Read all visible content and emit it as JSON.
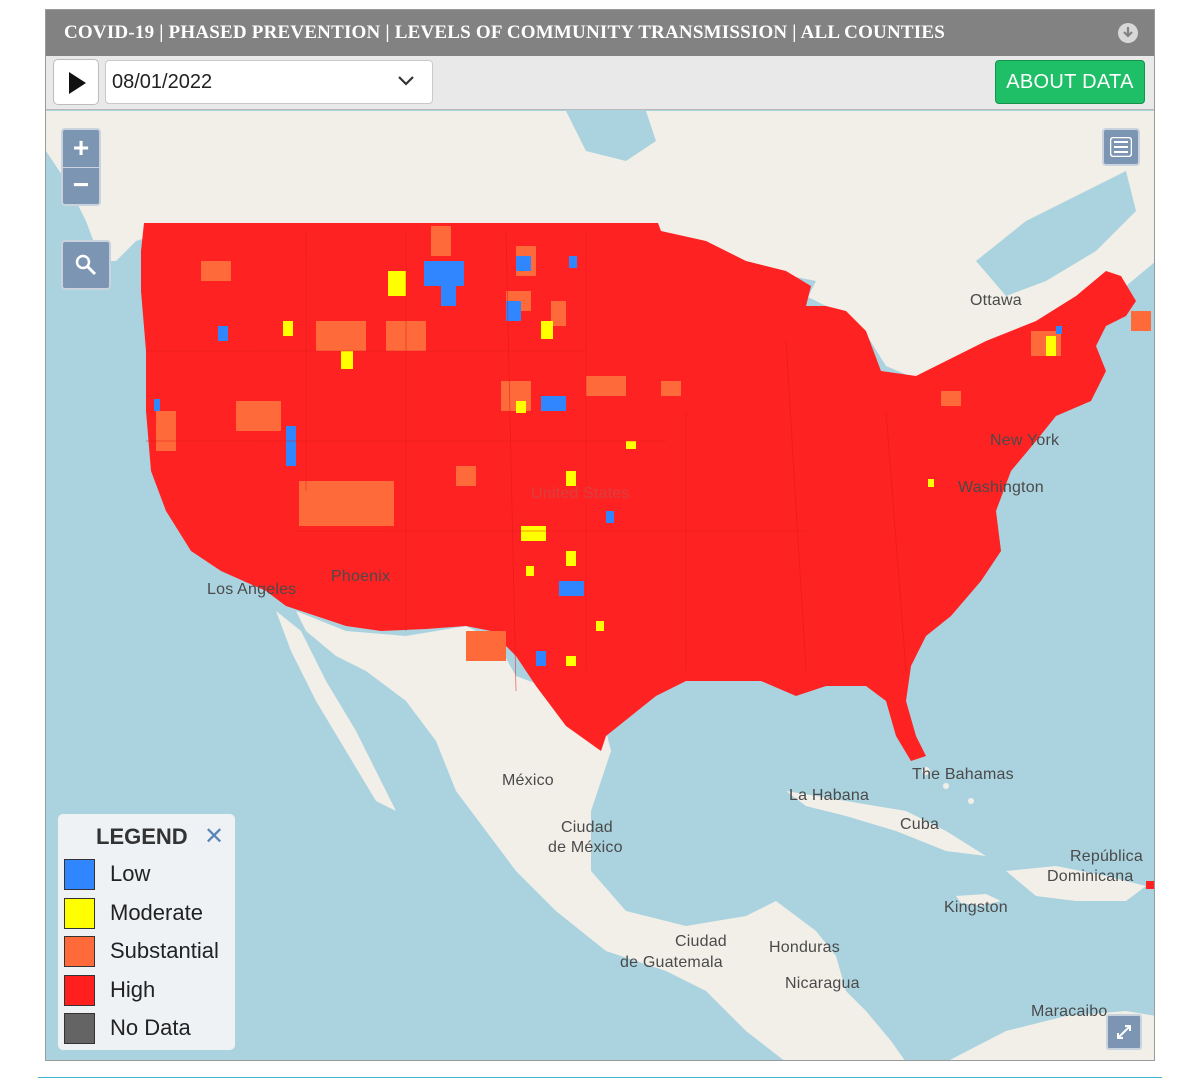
{
  "header": {
    "title": "COVID-19 | PHASED PREVENTION | LEVELS OF COMMUNITY TRANSMISSION | ALL COUNTIES"
  },
  "toolbar": {
    "date_value": "08/01/2022",
    "about_label": "ABOUT DATA"
  },
  "map_controls": {
    "zoom_in": "+",
    "zoom_out": "−"
  },
  "legend": {
    "title": "LEGEND",
    "close": "✕",
    "items": [
      {
        "label": "Low",
        "color": "#2f86ff"
      },
      {
        "label": "Moderate",
        "color": "#ffff00"
      },
      {
        "label": "Substantial",
        "color": "#ff6a3a"
      },
      {
        "label": "High",
        "color": "#ff1f1f"
      },
      {
        "label": "No Data",
        "color": "#646464"
      }
    ]
  },
  "places": {
    "ottawa": "Ottawa",
    "new_york": "New York",
    "washington": "Washington",
    "united_states": "United States",
    "phoenix": "Phoenix",
    "los_angeles": "Los Angeles",
    "mexico": "México",
    "ciudad_de_mexico_1": "Ciudad",
    "ciudad_de_mexico_2": "de México",
    "la_habana": "La Habana",
    "cuba": "Cuba",
    "bahamas": "The Bahamas",
    "republica_1": "República",
    "republica_2": "Dominicana",
    "kingston": "Kingston",
    "ciudad_guatemala_1": "Ciudad",
    "ciudad_guatemala_2": "de Guatemala",
    "honduras": "Honduras",
    "nicaragua": "Nicaragua",
    "maracaibo": "Maracaibo"
  },
  "colors": {
    "high": "#ff1f1f",
    "substantial": "#ff6a3a",
    "moderate": "#ffff00",
    "low": "#2f86ff",
    "water": "#aad3df",
    "land": "#f2efe9",
    "about_button": "#1fbf67"
  }
}
